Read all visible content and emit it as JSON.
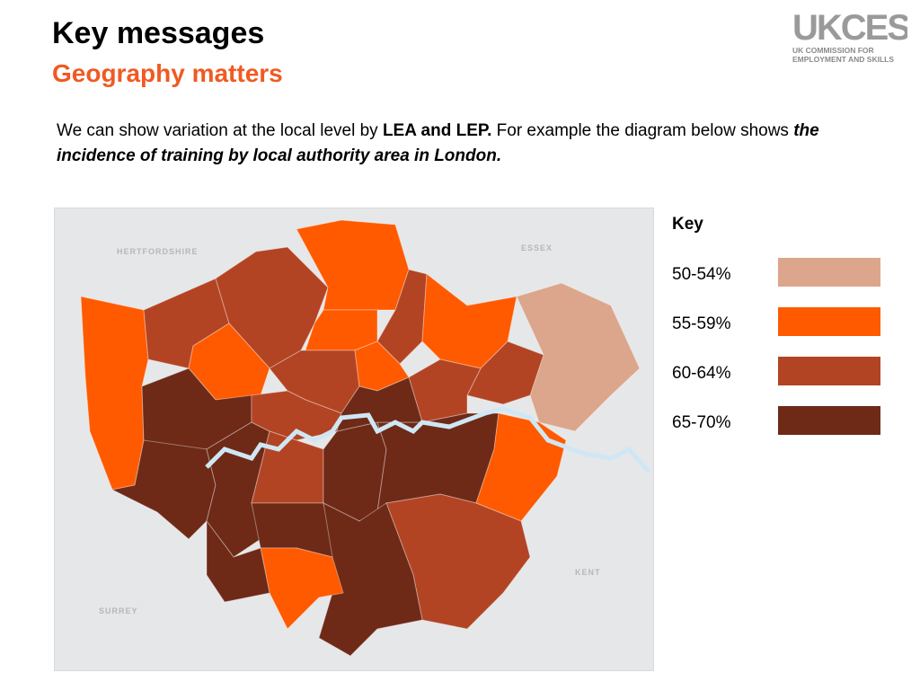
{
  "header": {
    "title": "Key messages",
    "subtitle": "Geography matters"
  },
  "logo": {
    "mark": "UKCES",
    "line1": "UK COMMISSION FOR",
    "line2": "EMPLOYMENT AND SKILLS"
  },
  "body": [
    "We can show variation at the local level by ",
    "LEA and LEP.",
    " For example the diagram below shows ",
    "the incidence of training by local authority area in London."
  ],
  "map": {
    "labels": [
      "HERTFORDSHIRE",
      "ESSEX",
      "KENT",
      "SURREY"
    ]
  },
  "key": {
    "title": "Key",
    "items": [
      {
        "label": "50-54%",
        "color": "#dba68b"
      },
      {
        "label": "55-59%",
        "color": "#ff5a00"
      },
      {
        "label": "60-64%",
        "color": "#b34423"
      },
      {
        "label": "65-70%",
        "color": "#6e2a17"
      }
    ]
  }
}
